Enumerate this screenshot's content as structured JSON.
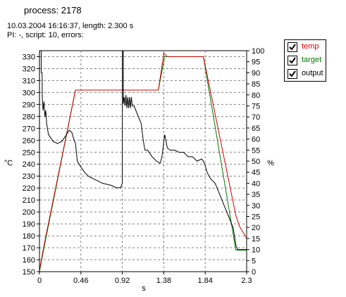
{
  "header": {
    "title": "process: 2178",
    "info_line1": "10.03.2004 16:16:37, length: 2.300 s",
    "info_line2": "PI: -, script: 10, errors:"
  },
  "legend": {
    "items": [
      {
        "label": "temp",
        "checked": true,
        "color": "#cc0000"
      },
      {
        "label": "target",
        "checked": true,
        "color": "#007700"
      },
      {
        "label": "output",
        "checked": true,
        "color": "#000000"
      }
    ]
  },
  "chart_data": {
    "type": "line",
    "xlabel": "s",
    "ylabel": "°C",
    "y2label": "%",
    "xlim": [
      0,
      2.3
    ],
    "ylim": [
      150,
      335
    ],
    "y2lim": [
      0,
      100
    ],
    "xticks": [
      "0",
      "0.46",
      "0.92",
      "1.38",
      "1.84",
      "2.3"
    ],
    "yticks": [
      150,
      160,
      170,
      180,
      190,
      200,
      210,
      220,
      230,
      240,
      250,
      260,
      270,
      280,
      290,
      300,
      310,
      320,
      330
    ],
    "y2ticks": [
      0,
      5,
      10,
      15,
      20,
      25,
      30,
      35,
      40,
      45,
      50,
      55,
      60,
      65,
      70,
      75,
      80,
      85,
      90,
      95,
      100
    ],
    "grid": true,
    "series": [
      {
        "name": "target",
        "axis": "left",
        "color": "#007700",
        "x": [
          0,
          0.05,
          0.4,
          0.93,
          1.32,
          1.39,
          1.82,
          2.18,
          2.3
        ],
        "y": [
          150,
          170,
          302,
          302,
          302,
          330,
          330,
          168,
          168
        ]
      },
      {
        "name": "temp",
        "axis": "left",
        "color": "#cc0000",
        "x": [
          0,
          0.05,
          0.4,
          0.9,
          0.93,
          1.32,
          1.37,
          1.38,
          1.42,
          1.6,
          1.78,
          1.82,
          2.18,
          2.22,
          2.26,
          2.3
        ],
        "y": [
          151,
          172,
          302,
          302,
          302,
          302,
          327,
          333,
          330,
          330,
          330,
          330,
          197,
          188,
          183,
          178
        ]
      },
      {
        "name": "output",
        "axis": "right",
        "color": "#000000",
        "x": [
          0,
          0.001,
          0.02,
          0.021,
          0.03,
          0.031,
          0.04,
          0.05,
          0.06,
          0.07,
          0.08,
          0.1,
          0.15,
          0.2,
          0.25,
          0.3,
          0.33,
          0.36,
          0.38,
          0.4,
          0.42,
          0.45,
          0.5,
          0.55,
          0.6,
          0.7,
          0.8,
          0.85,
          0.9,
          0.91,
          0.92,
          0.921,
          0.93,
          0.931,
          0.94,
          0.95,
          0.96,
          0.97,
          0.98,
          0.99,
          1.0,
          1.01,
          1.02,
          1.03,
          1.05,
          1.1,
          1.13,
          1.15,
          1.17,
          1.2,
          1.25,
          1.3,
          1.34,
          1.36,
          1.39,
          1.42,
          1.45,
          1.5,
          1.55,
          1.6,
          1.65,
          1.7,
          1.75,
          1.8,
          1.82,
          1.84,
          1.86,
          1.9,
          1.95,
          2.0,
          2.05,
          2.1,
          2.15,
          2.18,
          2.2,
          2.25,
          2.3
        ],
        "y": [
          0,
          100,
          100,
          90,
          90,
          79,
          73,
          77,
          70,
          73,
          67,
          62,
          59,
          58,
          59,
          62,
          64,
          63,
          60,
          58,
          50,
          48,
          45,
          43,
          42,
          40,
          39,
          38,
          38,
          39,
          40,
          100,
          100,
          76,
          79,
          75,
          80,
          74,
          79,
          74,
          79,
          74,
          79,
          75,
          75,
          70,
          67,
          60,
          55,
          55,
          52,
          50,
          49,
          52,
          62,
          56,
          55,
          55,
          54,
          54,
          52,
          52,
          50,
          51,
          50,
          48,
          45,
          42,
          40,
          35,
          30,
          25,
          20,
          12,
          10,
          10,
          10
        ]
      }
    ]
  }
}
